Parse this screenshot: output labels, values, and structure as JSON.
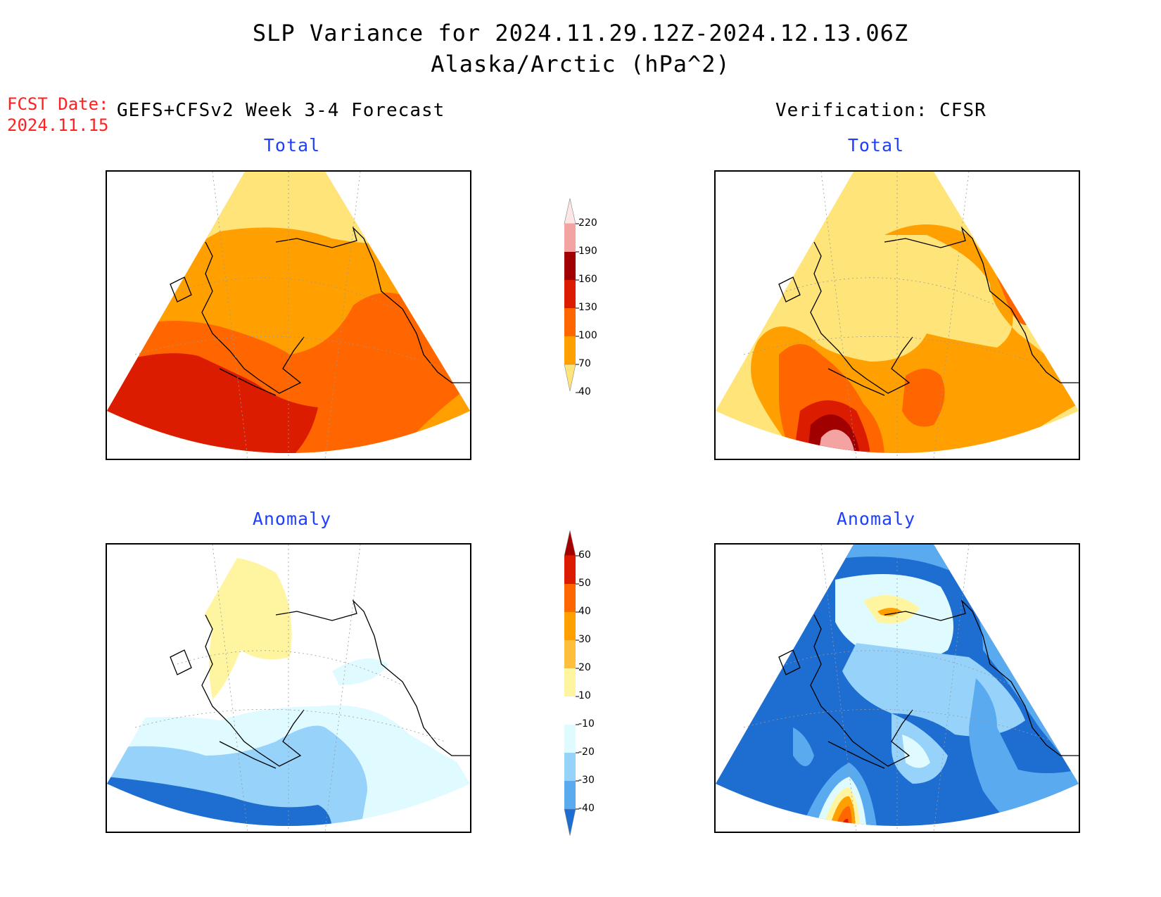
{
  "title": {
    "line1": "SLP Variance for 2024.11.29.12Z-2024.12.13.06Z",
    "line2": "Alaska/Arctic (hPa^2)"
  },
  "fcst": {
    "label": "FCST Date:",
    "date": "2024.11.15"
  },
  "left_header": "GEFS+CFSv2 Week 3-4 Forecast",
  "right_header": "Verification: CFSR",
  "panels": {
    "forecast_total": {
      "subtitle": "Total"
    },
    "verif_total": {
      "subtitle": "Total"
    },
    "forecast_anom": {
      "subtitle": "Anomaly"
    },
    "verif_anom": {
      "subtitle": "Anomaly"
    }
  },
  "colorbar_total": {
    "levels": [
      "220",
      "190",
      "160",
      "130",
      "100",
      "70",
      "40"
    ],
    "colors": [
      "#fce6e6",
      "#f4a3a3",
      "#a00000",
      "#dc1c00",
      "#ff6600",
      "#ffa000",
      "#ffe47a"
    ]
  },
  "colorbar_anom": {
    "levels": [
      "60",
      "50",
      "40",
      "30",
      "20",
      "10",
      "-10",
      "-20",
      "-30",
      "-40"
    ],
    "colors": [
      "#a50000",
      "#dc1c00",
      "#ff6600",
      "#ffa000",
      "#ffbe3c",
      "#fff5a0",
      "#ffffff",
      "#e0fbff",
      "#96d2fa",
      "#5aaaf0",
      "#1e6ed2"
    ]
  },
  "colors": {
    "title_blue": "#1f3fff",
    "fcst_red": "#ff2020"
  }
}
